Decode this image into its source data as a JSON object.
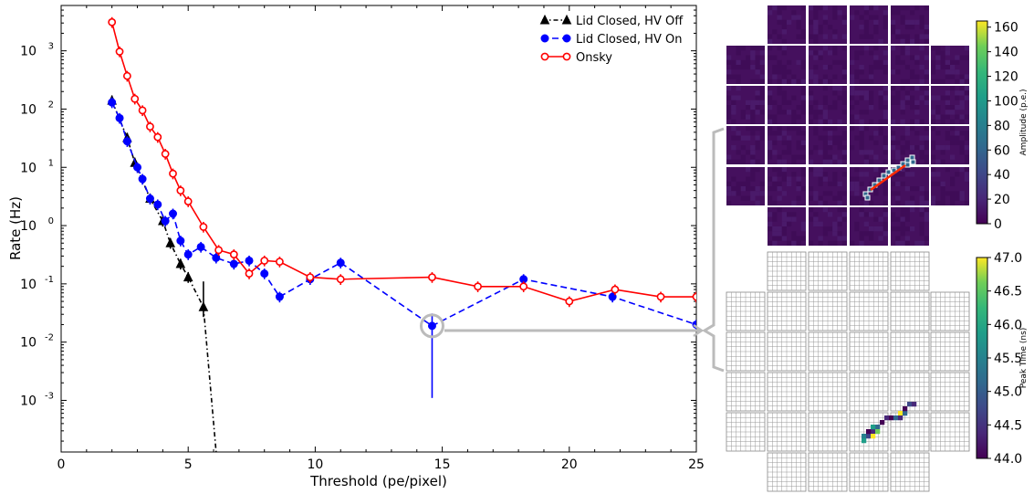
{
  "chart_data": [
    {
      "type": "line",
      "xlabel": "Threshold (pe/pixel)",
      "ylabel": "Rate (Hz)",
      "xlim": [
        0,
        25
      ],
      "ylim": [
        0.00013,
        6000
      ],
      "y_scale": "log",
      "grid": false,
      "legend_position": "top-right",
      "x_ticks": [
        "0",
        "5",
        "10",
        "15",
        "20",
        "25"
      ],
      "y_ticks": [
        {
          "base": "10",
          "exp": "-3",
          "value": 0.001
        },
        {
          "base": "10",
          "exp": "-2",
          "value": 0.01
        },
        {
          "base": "10",
          "exp": "-1",
          "value": 0.1
        },
        {
          "base": "10",
          "exp": "0",
          "value": 1
        },
        {
          "base": "10",
          "exp": "1",
          "value": 10
        },
        {
          "base": "10",
          "exp": "2",
          "value": 100
        },
        {
          "base": "10",
          "exp": "3",
          "value": 1000
        }
      ],
      "series": [
        {
          "name": "Lid Closed, HV Off",
          "color": "#000000",
          "marker": "triangle",
          "line_style": "dashdot",
          "x": [
            2.0,
            2.6,
            2.9,
            3.5,
            4.0,
            4.3,
            4.7,
            5.0,
            5.6
          ],
          "y": [
            140,
            32,
            12,
            2.9,
            1.2,
            0.5,
            0.22,
            0.13,
            0.04
          ],
          "err_low": [
            0,
            0,
            0,
            0,
            0,
            0,
            0,
            0,
            0.013
          ],
          "err_high": [
            0,
            0,
            0,
            0,
            0,
            0,
            0,
            0,
            0.07
          ],
          "extrapolation": {
            "x": [
              5.6,
              6.1
            ],
            "y": [
              0.04,
              0.00013
            ]
          }
        },
        {
          "name": "Lid Closed, HV On",
          "color": "#0000ff",
          "marker": "circle-filled",
          "line_style": "dashed",
          "x": [
            2.0,
            2.3,
            2.6,
            3.0,
            3.2,
            3.5,
            3.8,
            4.1,
            4.4,
            4.7,
            5.0,
            5.5,
            6.1,
            6.8,
            7.4,
            8.0,
            8.6,
            9.8,
            11.0,
            14.6,
            18.2,
            21.7,
            25.0
          ],
          "y": [
            130,
            70,
            28,
            10,
            6.3,
            2.9,
            2.3,
            1.2,
            1.6,
            0.55,
            0.32,
            0.43,
            0.28,
            0.22,
            0.25,
            0.15,
            0.06,
            0.12,
            0.23,
            0.019,
            0.12,
            0.06,
            0.02
          ],
          "err_low": [
            0,
            0,
            0,
            0,
            0,
            0,
            0,
            0,
            0,
            0,
            0,
            0,
            0,
            0,
            0,
            0,
            0,
            0,
            0,
            0.0179,
            0,
            0,
            0
          ],
          "err_high": [
            0,
            0,
            0,
            0,
            0,
            0,
            0,
            0,
            0,
            0,
            0,
            0,
            0,
            0,
            0,
            0,
            0,
            0,
            0,
            0.012,
            0,
            0,
            0
          ]
        },
        {
          "name": "Onsky",
          "color": "#ff0000",
          "marker": "circle-open",
          "line_style": "solid",
          "x": [
            2.0,
            2.3,
            2.6,
            2.9,
            3.2,
            3.5,
            3.8,
            4.1,
            4.4,
            4.7,
            5.0,
            5.6,
            6.2,
            6.8,
            7.4,
            8.0,
            8.6,
            9.8,
            11.0,
            14.6,
            16.4,
            18.2,
            20.0,
            21.8,
            23.6,
            25.0
          ],
          "y": [
            3100,
            970,
            370,
            150,
            95,
            50,
            33,
            17,
            7.8,
            4.0,
            2.6,
            0.95,
            0.38,
            0.32,
            0.15,
            0.25,
            0.24,
            0.13,
            0.12,
            0.13,
            0.09,
            0.09,
            0.05,
            0.08,
            0.06,
            0.06
          ]
        }
      ],
      "annotations": [
        {
          "type": "circle",
          "x": 14.6,
          "y": 0.019,
          "color": "#bbbbbb"
        }
      ]
    },
    {
      "type": "heatmap",
      "colorbar_label": "Amplitude (p.e.)",
      "colorbar_ticks": [
        "0",
        "20",
        "40",
        "60",
        "80",
        "100",
        "120",
        "140",
        "160"
      ],
      "colorbar_range": [
        0,
        165
      ],
      "colormap": "viridis",
      "module_layout": "6x6 grid of camera modules without corners (32 modules)",
      "hit_modules": "two adjacent modules in lower-right region show a diagonal track of bright pixels",
      "overlay": "red line segment marking the fitted track axis"
    },
    {
      "type": "heatmap",
      "colorbar_label": "Peak Time (ns)",
      "colorbar_ticks": [
        "44.0",
        "44.5",
        "45.0",
        "45.5",
        "46.0",
        "46.5",
        "47.0"
      ],
      "colorbar_range": [
        44.0,
        47.0
      ],
      "colormap": "viridis",
      "module_layout": "6x6 grid of camera modules without corners, empty pixels shown as white grid cells"
    }
  ]
}
